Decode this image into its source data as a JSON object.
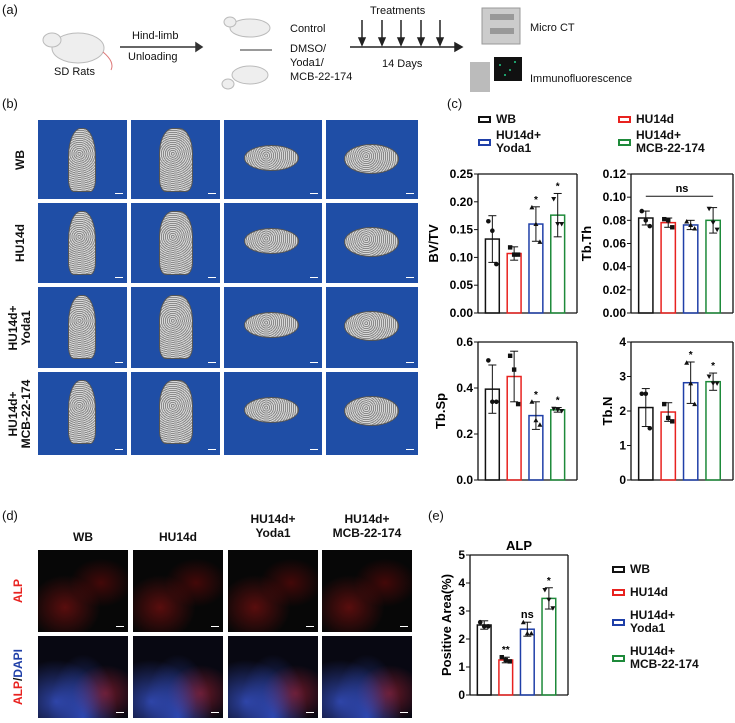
{
  "panel_labels": {
    "a": "(a)",
    "b": "(b)",
    "c": "(c)",
    "d": "(d)",
    "e": "(e)"
  },
  "schematic": {
    "start": "SD Rats",
    "step1_line1": "Hind-limb",
    "step1_line2": "Unloading",
    "control": "Control",
    "treat_line1": "DMSO/",
    "treat_line2": "Yoda1/",
    "treat_line3": "MCB-22-174",
    "treatments": "Treatments",
    "duration": "14 Days",
    "micro_ct": "Micro CT",
    "immuno": "Immunofluorescence"
  },
  "groups": [
    "WB",
    "HU14d",
    "HU14d+ Yoda1",
    "HU14d+ MCB-22-174"
  ],
  "group_lines": [
    [
      "WB"
    ],
    [
      "HU14d"
    ],
    [
      "HU14d+",
      "Yoda1"
    ],
    [
      "HU14d+",
      "MCB-22-174"
    ]
  ],
  "colors": [
    "#111111",
    "#e8221f",
    "#1f3fa8",
    "#1e8a3a"
  ],
  "ct_bg": "#1f4ea6",
  "fluor_rows": [
    {
      "a": "ALP"
    },
    {
      "a": "ALP",
      "sep": "/",
      "b": "DAPI"
    }
  ],
  "legend_e_title": "ALP",
  "chart_data": [
    {
      "type": "bar",
      "ylabel": "BV/TV",
      "ylim": [
        0,
        0.25
      ],
      "ticks": [
        "0.00",
        "0.05",
        "0.10",
        "0.15",
        "0.20",
        "0.25"
      ],
      "tickvals": [
        0,
        0.05,
        0.1,
        0.15,
        0.2,
        0.25
      ],
      "categories": [
        "WB",
        "HU14d",
        "HU14d+ Yoda1",
        "HU14d+ MCB-22-174"
      ],
      "values": [
        0.133,
        0.107,
        0.16,
        0.176
      ],
      "sd": [
        0.042,
        0.012,
        0.031,
        0.039
      ],
      "points": [
        [
          0.165,
          0.148,
          0.088
        ],
        [
          0.118,
          0.105,
          0.105
        ],
        [
          0.19,
          0.16,
          0.128
        ],
        [
          0.205,
          0.16,
          0.16
        ]
      ],
      "sig": [
        "",
        "",
        "*",
        "*"
      ]
    },
    {
      "type": "bar",
      "ylabel": "Tb.Th",
      "ylim": [
        0,
        0.12
      ],
      "ticks": [
        "0.00",
        "0.02",
        "0.04",
        "0.06",
        "0.08",
        "0.10",
        "0.12"
      ],
      "tickvals": [
        0,
        0.02,
        0.04,
        0.06,
        0.08,
        0.1,
        0.12
      ],
      "categories": [
        "WB",
        "HU14d",
        "HU14d+ Yoda1",
        "HU14d+ MCB-22-174"
      ],
      "values": [
        0.082,
        0.078,
        0.076,
        0.08
      ],
      "sd": [
        0.006,
        0.004,
        0.004,
        0.011
      ],
      "points": [
        [
          0.088,
          0.08,
          0.075
        ],
        [
          0.081,
          0.08,
          0.074
        ],
        [
          0.079,
          0.076,
          0.073
        ],
        [
          0.09,
          0.078,
          0.072
        ]
      ],
      "sig": [
        "",
        "",
        "",
        ""
      ],
      "bracket": "ns"
    },
    {
      "type": "bar",
      "ylabel": "Tb.Sp",
      "ylim": [
        0,
        0.6
      ],
      "ticks": [
        "0.0",
        "0.2",
        "0.4",
        "0.6"
      ],
      "tickvals": [
        0,
        0.2,
        0.4,
        0.6
      ],
      "categories": [
        "WB",
        "HU14d",
        "HU14d+ Yoda1",
        "HU14d+ MCB-22-174"
      ],
      "values": [
        0.395,
        0.45,
        0.28,
        0.305
      ],
      "sd": [
        0.105,
        0.11,
        0.06,
        0.01
      ],
      "points": [
        [
          0.52,
          0.34,
          0.34
        ],
        [
          0.54,
          0.48,
          0.33
        ],
        [
          0.34,
          0.26,
          0.24
        ],
        [
          0.31,
          0.305,
          0.3
        ]
      ],
      "sig": [
        "",
        "",
        "*",
        "*"
      ]
    },
    {
      "type": "bar",
      "ylabel": "Tb.N",
      "ylim": [
        0,
        4
      ],
      "ticks": [
        "0",
        "1",
        "2",
        "3",
        "4"
      ],
      "tickvals": [
        0,
        1,
        2,
        3,
        4
      ],
      "categories": [
        "WB",
        "HU14d",
        "HU14d+ Yoda1",
        "HU14d+ MCB-22-174"
      ],
      "values": [
        2.1,
        1.97,
        2.82,
        2.85
      ],
      "sd": [
        0.55,
        0.27,
        0.6,
        0.25
      ],
      "points": [
        [
          2.5,
          2.5,
          1.5
        ],
        [
          2.2,
          1.8,
          1.7
        ],
        [
          3.4,
          2.8,
          2.2
        ],
        [
          3.0,
          2.8,
          2.8
        ]
      ],
      "sig": [
        "",
        "",
        "*",
        "*"
      ]
    },
    {
      "type": "bar",
      "title": "ALP",
      "ylabel": "Positive Area(%)",
      "ylim": [
        0,
        5
      ],
      "ticks": [
        "0",
        "1",
        "2",
        "3",
        "4",
        "5"
      ],
      "tickvals": [
        0,
        1,
        2,
        3,
        4,
        5
      ],
      "categories": [
        "WB",
        "HU14d",
        "HU14d+ Yoda1",
        "HU14d+ MCB-22-174"
      ],
      "values": [
        2.5,
        1.25,
        2.35,
        3.45
      ],
      "sd": [
        0.15,
        0.1,
        0.25,
        0.38
      ],
      "points": [
        [
          2.6,
          2.45,
          2.45
        ],
        [
          1.35,
          1.25,
          1.2
        ],
        [
          2.6,
          2.2,
          2.2
        ],
        [
          3.75,
          3.4,
          3.1
        ]
      ],
      "sig": [
        "",
        "**",
        "ns",
        "*"
      ]
    }
  ]
}
